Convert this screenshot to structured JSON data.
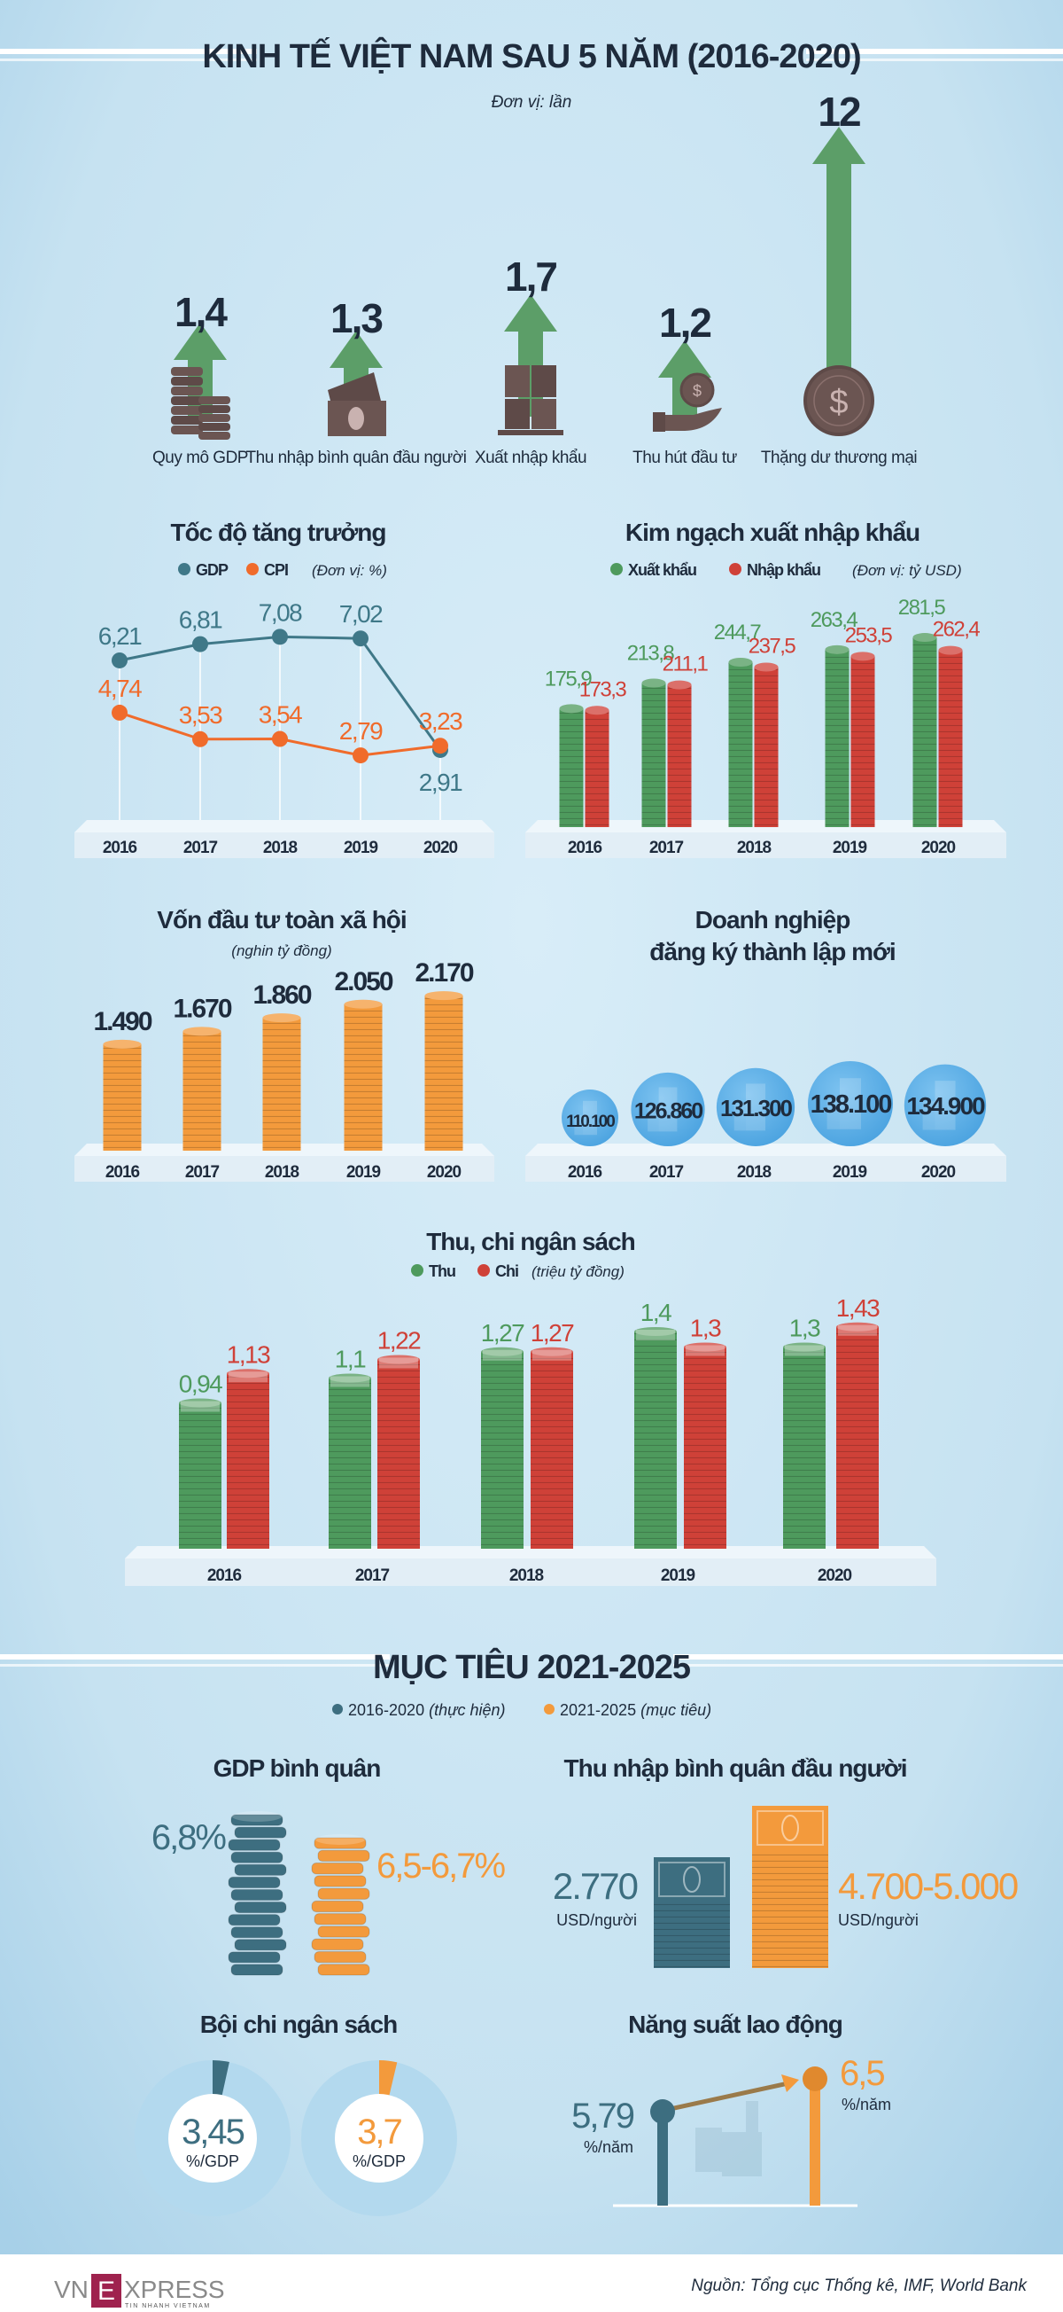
{
  "header": {
    "title": "KINH TẾ VIỆT NAM SAU 5 NĂM (2016-2020)",
    "unit": "Đơn vị: lần"
  },
  "colors": {
    "background": "#cfe6f3",
    "title": "#1e2b3c",
    "arrow": "#5c9e68",
    "icon": "#6b5552",
    "teal": "#3d6e80",
    "orange": "#f39a3c"
  },
  "chart_data": [
    {
      "type": "bar",
      "categories": [
        "Quy mô GDP",
        "Thu nhập bình quân đầu người",
        "Xuất nhập khẩu",
        "Thu hút đầu tư",
        "Thặng dư thương mại"
      ],
      "values": [
        1.4,
        1.3,
        1.7,
        1.2,
        12
      ],
      "labels": [
        "1,4",
        "1,3",
        "1,7",
        "1,2",
        "12"
      ],
      "icons": [
        "coin-stack-icon",
        "banknote-icon",
        "cargo-boxes-icon",
        "hand-coin-icon",
        "dollar-coin-icon"
      ],
      "color": "#5c9e68"
    },
    {
      "type": "line",
      "title": "Tốc độ tăng trưởng",
      "unit": "(Đơn vị: %)",
      "categories": [
        "2016",
        "2017",
        "2018",
        "2019",
        "2020"
      ],
      "series": [
        {
          "name": "GDP",
          "values": [
            6.21,
            6.81,
            7.08,
            7.02,
            2.91
          ],
          "color": "#3f7888"
        },
        {
          "name": "CPI",
          "values": [
            4.74,
            3.53,
            3.54,
            2.79,
            3.23
          ],
          "color": "#f06b2b"
        }
      ]
    },
    {
      "type": "bar",
      "title": "Kim ngạch xuất nhập khẩu",
      "unit": "(Đơn vị: tỷ USD)",
      "categories": [
        "2016",
        "2017",
        "2018",
        "2019",
        "2020"
      ],
      "series": [
        {
          "name": "Xuất khẩu",
          "values": [
            175.9,
            213.8,
            244.7,
            263.4,
            281.5
          ],
          "color": "#4e9a5d"
        },
        {
          "name": "Nhập khẩu",
          "values": [
            173.3,
            211.1,
            237.5,
            253.5,
            262.4
          ],
          "color": "#cf4138"
        }
      ]
    },
    {
      "type": "bar",
      "title": "Vốn đầu tư toàn xã hội",
      "unit": "(nghin tỷ đồng)",
      "categories": [
        "2016",
        "2017",
        "2018",
        "2019",
        "2020"
      ],
      "values": [
        1490,
        1670,
        1860,
        2050,
        2170
      ],
      "color": "#f39a3c"
    },
    {
      "type": "scatter",
      "title": [
        "Doanh nghiệp",
        "đăng ký thành lập mới"
      ],
      "categories": [
        "2016",
        "2017",
        "2018",
        "2019",
        "2020"
      ],
      "values": [
        110100,
        126860,
        131300,
        138100,
        134900
      ],
      "color": "#5aaee6"
    },
    {
      "type": "bar",
      "title": "Thu, chi ngân sách",
      "unit": "(triệu tỷ đồng)",
      "categories": [
        "2016",
        "2017",
        "2018",
        "2019",
        "2020"
      ],
      "series": [
        {
          "name": "Thu",
          "values": [
            0.94,
            1.1,
            1.27,
            1.4,
            1.3
          ],
          "color": "#4e9a5d"
        },
        {
          "name": "Chi",
          "values": [
            1.13,
            1.22,
            1.27,
            1.3,
            1.43
          ],
          "color": "#cf4138"
        }
      ]
    }
  ],
  "targets": {
    "title": "MỤC TIÊU 2021-2025",
    "legend": [
      {
        "label": "2016-2020",
        "note": "(thực hiện)",
        "color": "#3d6e80"
      },
      {
        "label": "2021-2025",
        "note": "(mục tiêu)",
        "color": "#f39a3c"
      }
    ],
    "gdp": {
      "title": "GDP bình quân",
      "actual": "6,8%",
      "target": "6,5-6,7%"
    },
    "income": {
      "title": "Thu nhập bình quân đầu người",
      "actual": "2.770",
      "target": "4.700-5.000",
      "unit": "USD/người"
    },
    "deficit": {
      "title": "Bội chi ngân sách",
      "actual": 3.45,
      "target": 3.7,
      "actual_label": "3,45",
      "target_label": "3,7",
      "unit": "%/GDP"
    },
    "productivity": {
      "title": "Năng suất lao động",
      "actual": 5.79,
      "target": 6.5,
      "actual_label": "5,79",
      "target_label": "6,5",
      "unit": "%/năm"
    }
  },
  "footer": {
    "logo": {
      "left": "VN",
      "box": "E",
      "right": "XPRESS",
      "tagline": "TIN NHANH VIETNAM"
    },
    "source": "Nguồn: Tổng cục Thống kê, IMF, World Bank"
  }
}
